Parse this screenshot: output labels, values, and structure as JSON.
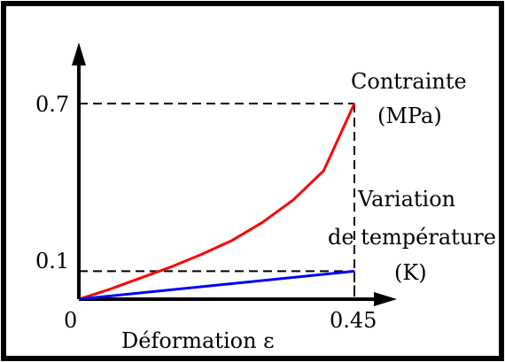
{
  "chart_data": {
    "type": "line",
    "xlabel": "Déformation ε",
    "series": [
      {
        "name": "Contrainte (MPa)",
        "name_lines": [
          "Contrainte",
          "(MPa)"
        ],
        "color": "#ff0000",
        "x": [
          0,
          0.05,
          0.1,
          0.15,
          0.2,
          0.25,
          0.3,
          0.35,
          0.4,
          0.45
        ],
        "y": [
          0,
          0.035,
          0.075,
          0.115,
          0.16,
          0.21,
          0.275,
          0.355,
          0.46,
          0.7
        ]
      },
      {
        "name": "Variation de température (K)",
        "name_lines": [
          "Variation",
          "de température",
          "(K)"
        ],
        "color": "#0000ff",
        "x": [
          0,
          0.45
        ],
        "y": [
          0,
          0.1
        ]
      }
    ],
    "x_ticks": [
      {
        "value": 0,
        "label": "0"
      },
      {
        "value": 0.45,
        "label": "0.45"
      }
    ],
    "y_ticks": [
      {
        "value": 0.1,
        "label": "0.1"
      },
      {
        "value": 0.7,
        "label": "0.7"
      }
    ],
    "reference_lines": [
      {
        "x": 0.45,
        "y": 0.7
      },
      {
        "x": 0.45,
        "y": 0.1
      }
    ],
    "xlim": [
      0,
      0.52
    ],
    "ylim": [
      0,
      0.82
    ],
    "grid": false,
    "legend": "none (series labels placed beside curves, right side)"
  }
}
